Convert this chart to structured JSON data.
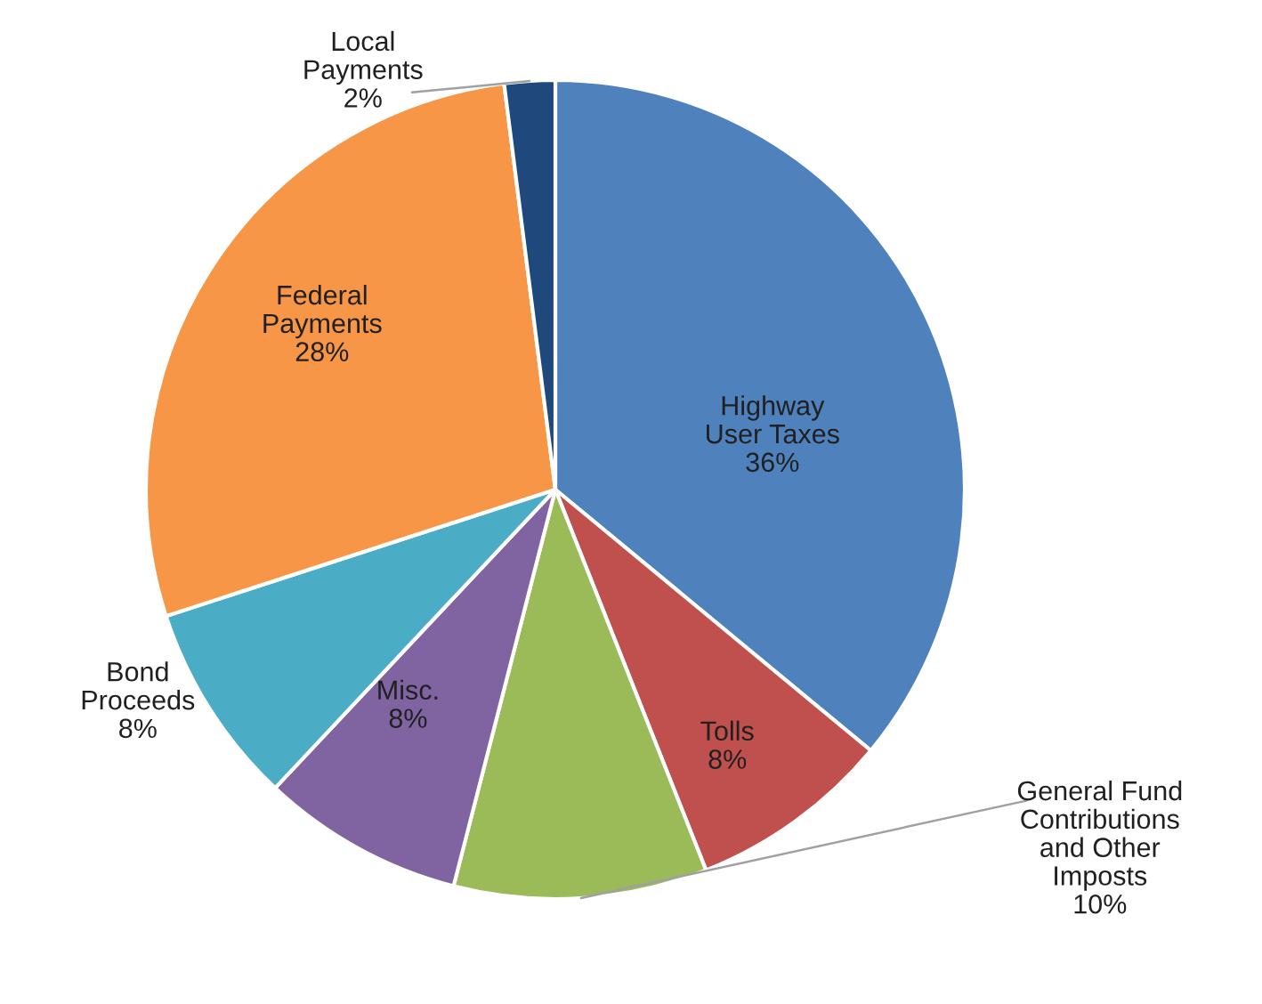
{
  "chart_data": {
    "type": "pie",
    "categories": [
      "Highway\nUser Taxes",
      "Tolls",
      "General Fund\nContributions\nand Other\nImposts",
      "Misc.",
      "Bond\nProceeds",
      "Federal\nPayments",
      "Local\nPayments"
    ],
    "values": [
      36,
      8,
      10,
      8,
      8,
      28,
      2
    ],
    "colors": [
      "#4f81bd",
      "#c0504d",
      "#9bbb59",
      "#8064a2",
      "#4bacc6",
      "#f79646",
      "#1f497d"
    ],
    "value_labels": [
      "36%",
      "8%",
      "10%",
      "8%",
      "8%",
      "28%",
      "2%"
    ]
  }
}
